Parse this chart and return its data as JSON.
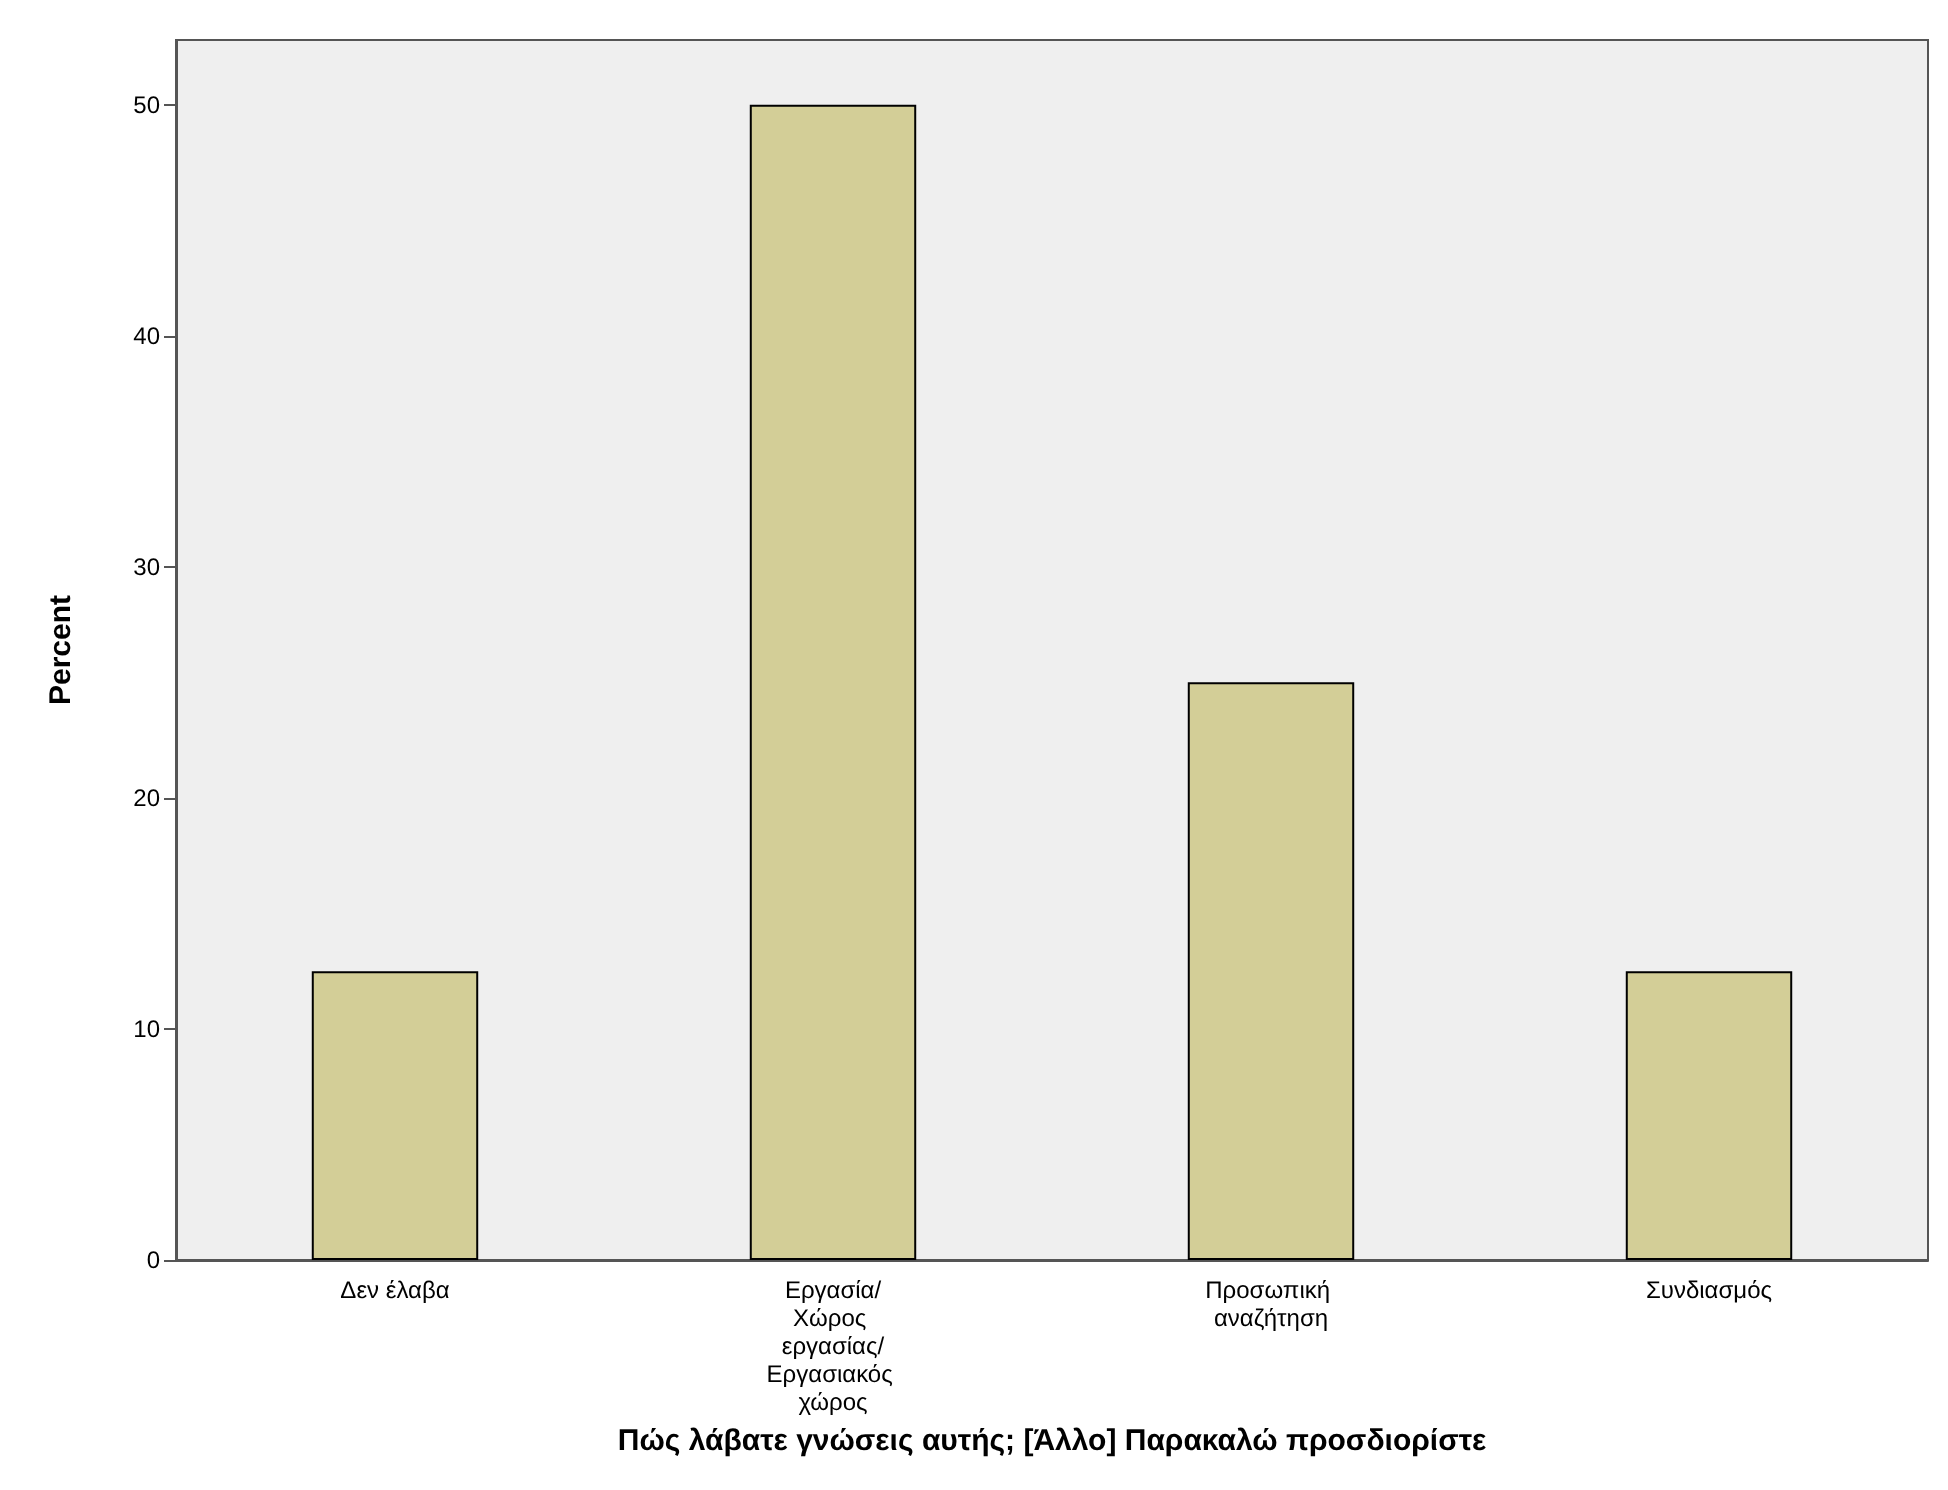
{
  "chart_data": {
    "type": "bar",
    "xlabel": "Πώς λάβατε γνώσεις αυτής; [Άλλο] Παρακαλώ προσδιορίστε",
    "ylabel": "Percent",
    "categories": [
      "Δεν έλαβα",
      "Εργασία/Χώρος εργασίας/Εργασιακός χώρος",
      "Προσωπική αναζήτηση",
      "Συνδιασμός"
    ],
    "values": [
      12.5,
      50,
      25,
      12.5
    ],
    "color": "#d3ce97",
    "ylim": [
      0,
      52.8
    ],
    "yticks": [
      0,
      10,
      20,
      30,
      40,
      50
    ],
    "grid": false
  }
}
